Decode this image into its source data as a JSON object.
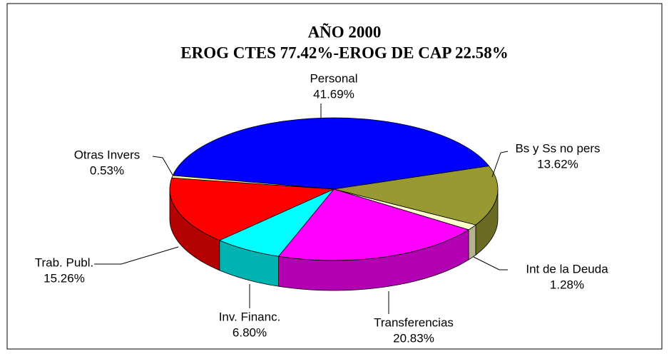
{
  "chart_data": {
    "type": "pie3d",
    "title": [
      "AÑO 2000",
      "EROG CTES 77.42%-EROG DE CAP 22.58%"
    ],
    "categories": [
      "Personal",
      "Bs y Ss no pers",
      "Int de la Deuda",
      "Transferencias",
      "Inv. Financ.",
      "Trab. Publ.",
      "Otras Invers"
    ],
    "values": [
      41.69,
      13.62,
      1.28,
      20.83,
      6.8,
      15.26,
      0.53
    ],
    "value_labels": [
      "41.69%",
      "13.62%",
      "1.28%",
      "20.83%",
      "6.80%",
      "15.26%",
      "0.53%"
    ],
    "colors": [
      "#0000ff",
      "#999933",
      "#ffffcc",
      "#ff00ff",
      "#00ffff",
      "#ff0000",
      "#ffff99"
    ]
  }
}
